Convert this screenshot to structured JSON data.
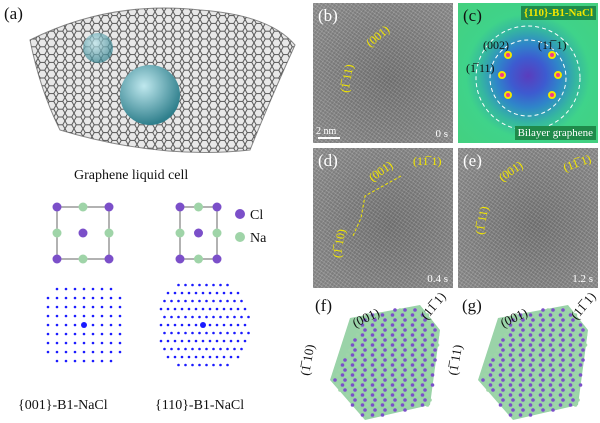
{
  "panel_a": {
    "label": "(a)",
    "caption": "Graphene liquid cell",
    "legend": [
      {
        "name": "Cl",
        "color": "#7b4fc9"
      },
      {
        "name": "Na",
        "color": "#9fd4a8"
      }
    ],
    "structures": [
      "{001}-B1-NaCl",
      "{110}-B1-NaCl"
    ],
    "diffraction_dot_color": "#1a1aff"
  },
  "panel_b": {
    "label": "(b)",
    "facets": [
      "(001)",
      "(1̅ 11)"
    ],
    "scale": "2 nm",
    "time": "0 s"
  },
  "panel_c": {
    "label": "(c)",
    "tag": "{110}-B1-NaCl",
    "spots": [
      "(002)",
      "(11̅ 1)",
      "(1̅ 11)"
    ],
    "graphene_label": "Bilayer graphene",
    "spot_color": "#f2e600"
  },
  "panel_d": {
    "label": "(d)",
    "facets": [
      "(001)",
      "(11̅ 1)",
      "(1̅ 10)"
    ],
    "time": "0.4 s"
  },
  "panel_e": {
    "label": "(e)",
    "facets": [
      "(001)",
      "(11̅ 1)",
      "(1̅ 11)"
    ],
    "time": "1.2 s"
  },
  "panel_f": {
    "label": "(f)",
    "facets": [
      "(001)",
      "(11̅ 1)",
      "(1̅ 10)"
    ]
  },
  "panel_g": {
    "label": "(g)",
    "facets": [
      "(001)",
      "(11̅ 1)",
      "(1̅ 11)"
    ]
  },
  "colors": {
    "annotation": "#f2e600",
    "cl": "#7b4fc9",
    "na": "#9fd4a8"
  }
}
